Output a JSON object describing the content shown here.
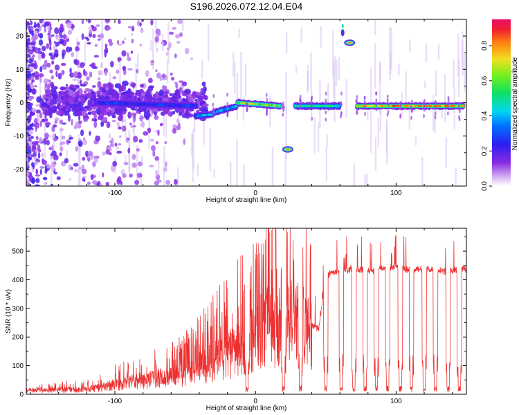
{
  "title": "S196.2026.072.12.04.E04",
  "chart_data": [
    {
      "type": "heatmap",
      "title": "S196.2026.072.12.04.E04",
      "xlabel": "Height of straight line (km)",
      "ylabel": "Frequency (Hz)",
      "xlim": [
        -163,
        150
      ],
      "ylim": [
        -25,
        25
      ],
      "xticks": [
        -100,
        0,
        100
      ],
      "yticks": [
        -20,
        -10,
        0,
        10,
        20
      ],
      "colorbar": {
        "label": "Normalized spectral amplitude",
        "range": [
          0,
          0.95
        ],
        "ticks": [
          0.0,
          0.2,
          0.4,
          0.6,
          0.8
        ],
        "tick_labels": [
          "0.0",
          "0.2",
          "0.4",
          "0.6",
          "0.8"
        ]
      },
      "features": [
        {
          "name": "noise region",
          "x_range": [
            -163,
            -45
          ],
          "frequency_range": [
            -25,
            25
          ],
          "amplitude": "low"
        },
        {
          "name": "main carrier",
          "x_range": [
            -110,
            -40
          ],
          "frequency": 0,
          "amplitude": 0.25
        },
        {
          "name": "carrier drift",
          "x_range": [
            -45,
            -10
          ],
          "frequency_range": [
            -5,
            -1
          ],
          "amplitude": 0.45
        },
        {
          "name": "carrier",
          "x_range": [
            -15,
            20
          ],
          "frequency": 0,
          "amplitude": 0.75
        },
        {
          "name": "carrier",
          "x_range": [
            28,
            60
          ],
          "frequency": -1,
          "amplitude": 0.55
        },
        {
          "name": "carrier",
          "x_range": [
            72,
            148
          ],
          "frequency": -1,
          "amplitude": 0.85
        },
        {
          "name": "tone",
          "x": 23,
          "frequency": -14,
          "amplitude": 0.8
        },
        {
          "name": "tone",
          "x": 67,
          "frequency": 18,
          "amplitude": 0.75
        }
      ]
    },
    {
      "type": "line",
      "title": "",
      "xlabel": "Height of straight line (km)",
      "ylabel": "SNR (10 * v/v)",
      "xlim": [
        -163,
        150
      ],
      "ylim": [
        0,
        580
      ],
      "xticks": [
        -100,
        0,
        100
      ],
      "yticks": [
        0,
        100,
        200,
        300,
        400,
        500
      ],
      "series": [
        {
          "name": "SNR",
          "color": "#ee3030",
          "x": [
            -163,
            -150,
            -140,
            -130,
            -120,
            -110,
            -100,
            -90,
            -80,
            -70,
            -60,
            -50,
            -40,
            -30,
            -20,
            -10,
            0,
            5,
            10,
            20,
            30,
            35,
            40,
            45,
            50,
            60,
            70,
            80,
            90,
            100,
            110,
            120,
            130,
            140,
            150
          ],
          "values": [
            20,
            20,
            22,
            22,
            25,
            35,
            50,
            60,
            70,
            80,
            90,
            105,
            135,
            170,
            200,
            235,
            300,
            370,
            360,
            340,
            400,
            380,
            240,
            230,
            420,
            430,
            440,
            430,
            440,
            445,
            435,
            440,
            435,
            430,
            440
          ]
        }
      ],
      "dropouts_near_x": [
        -6,
        20,
        32,
        50,
        61,
        70,
        78,
        86,
        94,
        103,
        111,
        120,
        128,
        137,
        145
      ]
    }
  ]
}
